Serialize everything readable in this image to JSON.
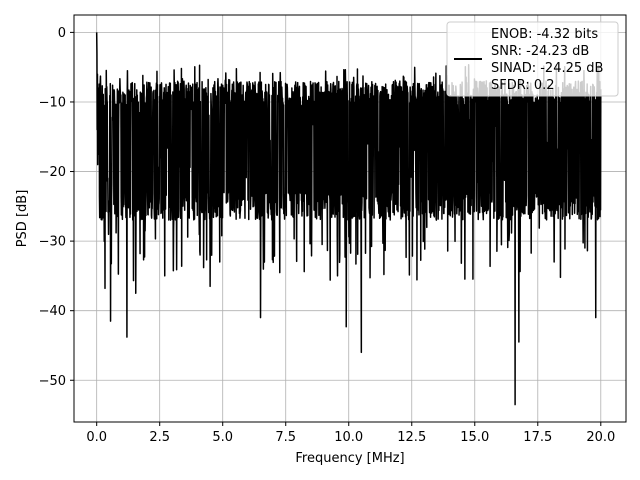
{
  "chart_data": {
    "type": "line",
    "title": "",
    "xlabel": "Frequency [MHz]",
    "ylabel": "PSD [dB]",
    "xlim": [
      -0.9,
      21.0
    ],
    "ylim": [
      -56,
      2.5
    ],
    "xticks": [
      0.0,
      2.5,
      5.0,
      7.5,
      10.0,
      12.5,
      15.0,
      17.5,
      20.0
    ],
    "xtick_labels": [
      "0.0",
      "2.5",
      "5.0",
      "7.5",
      "10.0",
      "12.5",
      "15.0",
      "17.5",
      "20.0"
    ],
    "yticks": [
      0,
      -10,
      -20,
      -30,
      -40,
      -50
    ],
    "ytick_labels": [
      "0",
      "−10",
      "−20",
      "−30",
      "−40",
      "−50"
    ],
    "grid": true,
    "legend_position": "top-right",
    "series": [
      {
        "name": "ENOB: -4.32 bits\nSNR: -24.23 dB\nSINAD: -24.25 dB\nSFDR: 0.2",
        "legend_lines": [
          "ENOB: -4.32 bits",
          "SNR: -24.23 dB",
          "SINAD: -24.25 dB",
          "SFDR: 0.2"
        ],
        "color": "#000000",
        "x_range": [
          0.0,
          20.0
        ],
        "num_points": 2000,
        "typical_range": [
          -25,
          -9
        ],
        "peak": {
          "x": 0.0,
          "y": 0.0
        },
        "notable_dips": [
          {
            "x": 0.33,
            "y": -36.8
          },
          {
            "x": 0.55,
            "y": -41.5
          },
          {
            "x": 1.2,
            "y": -43.8
          },
          {
            "x": 1.55,
            "y": -37.5
          },
          {
            "x": 2.7,
            "y": -35.0
          },
          {
            "x": 4.5,
            "y": -36.5
          },
          {
            "x": 6.5,
            "y": -41.0
          },
          {
            "x": 9.9,
            "y": -42.3
          },
          {
            "x": 10.5,
            "y": -46.0
          },
          {
            "x": 16.6,
            "y": -53.5
          },
          {
            "x": 16.75,
            "y": -44.5
          },
          {
            "x": 19.8,
            "y": -41.0
          }
        ]
      }
    ]
  }
}
